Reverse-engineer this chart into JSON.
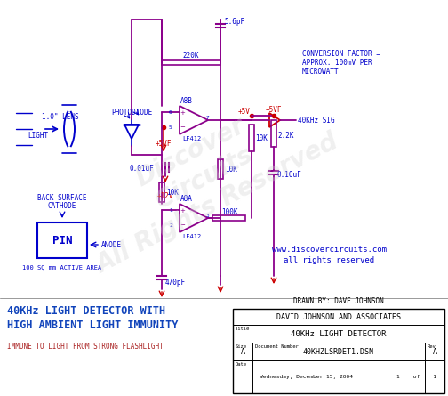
{
  "background_color": "#ffffff",
  "wire_color": "#8B008B",
  "blue_color": "#0000CC",
  "red_color": "#CC0000",
  "dark_color": "#000000",
  "bottom_title_line1": "40KHz LIGHT DETECTOR WITH",
  "bottom_title_line2": "HIGH AMBIENT LIGHT IMMUNITY",
  "subtitle": "IMMUNE TO LIGHT FROM STRONG FLASHLIGHT",
  "company": "DAVID JOHNSON AND ASSOCIATES",
  "title_box": "40KHz LIGHT DETECTOR",
  "doc_num": "40KHZLSRDET1.DSN",
  "drawn_by": "DRAWN BY: DAVE JOHNSON",
  "date_str": "Wednesday, December 15, 2004",
  "rev": "A",
  "size": "A",
  "website_line1": "www.discovercircuits.com",
  "website_line2": "all rights reserved",
  "conversion_line1": "CONVERSION FACTOR =",
  "conversion_line2": "APPROX. 100mV PER",
  "conversion_line3": "MICROWATT",
  "wm_line1": "Discover",
  "wm_line2": "Circuits",
  "wm_line3": "All Rights Reserved"
}
